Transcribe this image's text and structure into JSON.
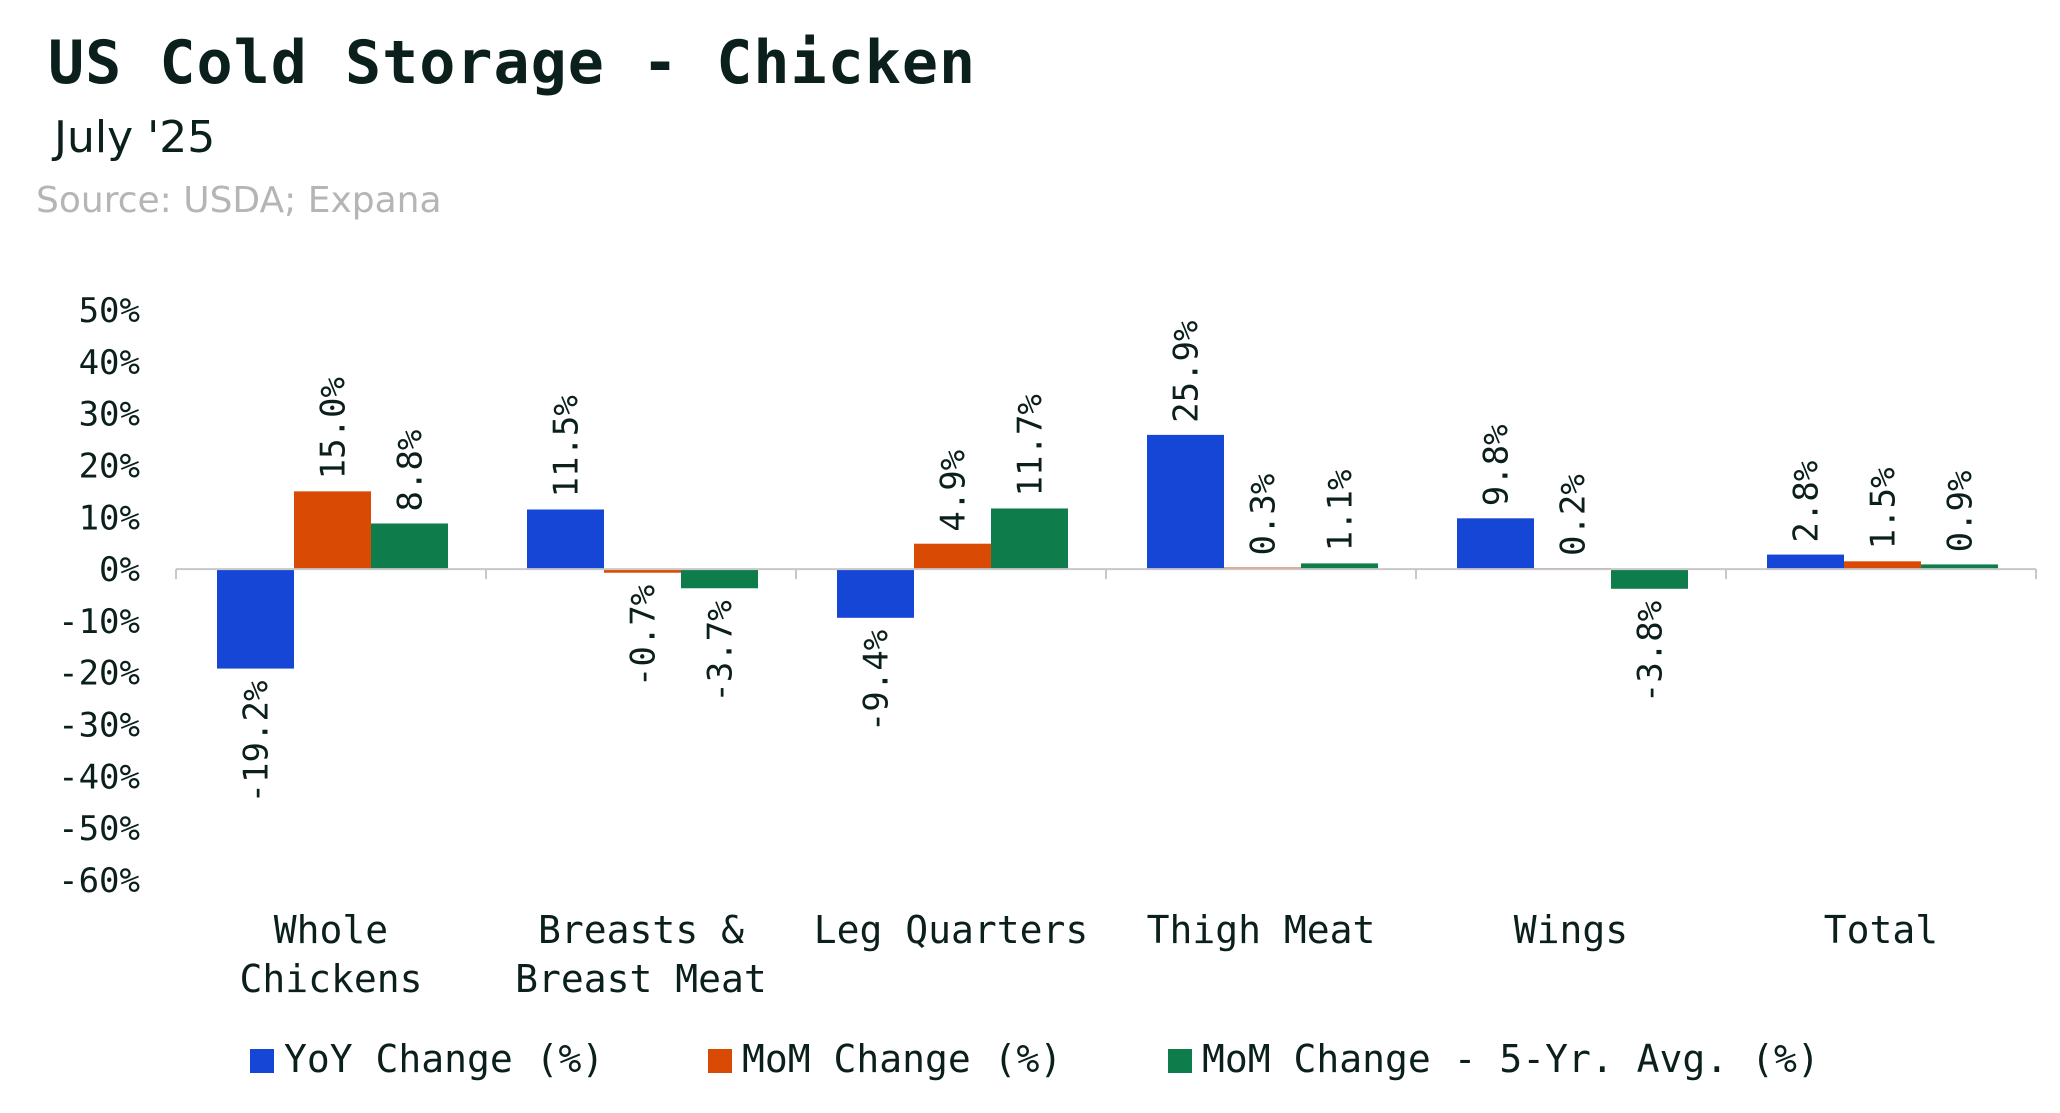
{
  "header": {
    "title": "US Cold Storage - Chicken",
    "subtitle": "July '25",
    "source": "Source: USDA; Expana"
  },
  "chart_data": {
    "type": "bar",
    "title": "US Cold Storage - Chicken",
    "subtitle": "July '25",
    "categories": [
      [
        "Whole",
        "Chickens"
      ],
      [
        "Breasts &",
        "Breast Meat"
      ],
      [
        "Leg Quarters"
      ],
      [
        "Thigh Meat"
      ],
      [
        "Wings"
      ],
      [
        "Total"
      ]
    ],
    "series": [
      {
        "name": "YoY Change (%)",
        "color": "#1546d6",
        "values": [
          -19.2,
          11.5,
          -9.4,
          25.9,
          9.8,
          2.8
        ]
      },
      {
        "name": "MoM Change (%)",
        "color": "#d94a04",
        "values": [
          15.0,
          -0.7,
          4.9,
          0.3,
          0.2,
          1.5
        ]
      },
      {
        "name": "MoM Change - 5-Yr. Avg. (%)",
        "color": "#0f7d4b",
        "values": [
          8.8,
          -3.7,
          11.7,
          1.1,
          -3.8,
          0.9
        ]
      }
    ],
    "yticks": [
      "50%",
      "40%",
      "30%",
      "20%",
      "10%",
      "0%",
      "-10%",
      "-20%",
      "-30%",
      "-40%",
      "-50%",
      "-60%"
    ],
    "ylim": [
      -60,
      50
    ],
    "data_labels": true,
    "legend_position": "bottom",
    "grid": false
  }
}
